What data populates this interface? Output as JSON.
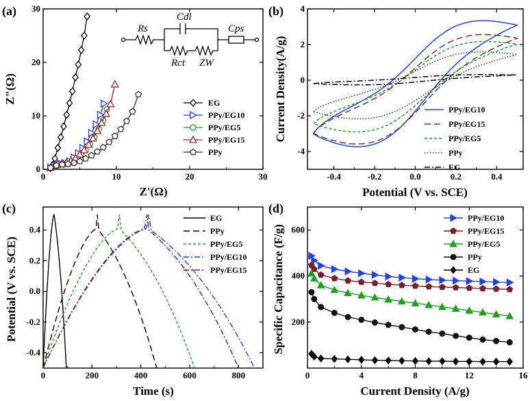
{
  "chart_data": [
    {
      "id": "a",
      "type": "scatter",
      "panel_label": "(a)",
      "xlabel": "Z'(Ω)",
      "ylabel": "Z\"(Ω)",
      "xlim": [
        0,
        30
      ],
      "ylim": [
        0,
        30
      ],
      "xticks": [
        0,
        10,
        20,
        30
      ],
      "yticks": [
        0,
        10,
        20,
        30
      ],
      "inset_circuit": {
        "rs": "Rs",
        "cdl": "Cdl",
        "rct": "Rct",
        "zw": "ZW",
        "cps": "Cps"
      },
      "series": [
        {
          "name": "EG",
          "color": "#000000",
          "marker": "diamond",
          "x": [
            1.0,
            1.3,
            1.6,
            2.0,
            2.4,
            2.8,
            3.2,
            3.6,
            4.0,
            4.4,
            4.8,
            5.2,
            5.6,
            6.0
          ],
          "y": [
            0.2,
            0.8,
            2.0,
            4.0,
            6.0,
            8.0,
            10.2,
            12.4,
            14.6,
            17.2,
            19.6,
            22.3,
            25.0,
            28.6
          ]
        },
        {
          "name": "PPy/EG10",
          "color": "#1f3fff",
          "marker": "tri-right",
          "x": [
            1.0,
            1.5,
            2.0,
            2.5,
            3.0,
            3.6,
            4.2,
            4.8,
            5.4,
            6.0,
            6.6,
            7.2,
            7.8,
            8.3
          ],
          "y": [
            0.3,
            0.7,
            0.9,
            1.0,
            1.1,
            1.5,
            2.2,
            3.0,
            4.0,
            5.2,
            6.8,
            8.4,
            10.2,
            12.3
          ]
        },
        {
          "name": "PPy/EG5",
          "color": "#1aa31a",
          "marker": "circle",
          "x": [
            1.0,
            1.6,
            2.2,
            2.8,
            3.4,
            4.0,
            4.6,
            5.2,
            5.8,
            6.4,
            7.0,
            7.6,
            8.2,
            8.7
          ],
          "y": [
            0.3,
            0.6,
            0.8,
            0.9,
            1.0,
            1.3,
            1.9,
            2.7,
            3.6,
            4.7,
            6.0,
            7.5,
            9.2,
            11.2
          ]
        },
        {
          "name": "PPy/EG15",
          "color": "#a0202a",
          "marker": "triangle",
          "x": [
            1.0,
            1.5,
            2.0,
            2.6,
            3.2,
            3.8,
            4.4,
            5.0,
            5.6,
            6.2,
            6.8,
            7.4,
            8.0,
            8.6,
            9.2,
            9.8
          ],
          "y": [
            0.3,
            0.7,
            1.0,
            1.2,
            1.3,
            1.6,
            2.1,
            2.8,
            3.6,
            4.6,
            5.8,
            7.2,
            8.7,
            10.4,
            12.2,
            15.9
          ]
        },
        {
          "name": "PPy",
          "color": "#333333",
          "marker": "pentagon",
          "x": [
            1.0,
            1.8,
            2.6,
            3.4,
            4.2,
            5.0,
            5.8,
            6.6,
            7.4,
            8.2,
            9.0,
            9.8,
            10.6,
            11.4,
            12.2,
            13.0
          ],
          "y": [
            0.3,
            0.7,
            0.9,
            1.0,
            1.2,
            1.5,
            2.0,
            2.6,
            3.3,
            4.1,
            5.1,
            6.2,
            7.5,
            9.0,
            10.8,
            14.0
          ]
        }
      ]
    },
    {
      "id": "b",
      "type": "line",
      "panel_label": "(b)",
      "xlabel": "Potential (V vs. SCE)",
      "ylabel": "Current Density(A/g)",
      "xlim": [
        -0.53,
        0.53
      ],
      "ylim": [
        -5,
        4
      ],
      "xticks": [
        -0.4,
        -0.2,
        0.0,
        0.2,
        0.4
      ],
      "yticks": [
        -4,
        -2,
        0,
        2,
        4
      ],
      "series": [
        {
          "name": "PPy/EG10",
          "color": "#1f3fff",
          "dash": "solid",
          "amp": 3.15,
          "hyst": 1.7,
          "offset": 0.05
        },
        {
          "name": "PPy/EG15",
          "color": "#7a3030",
          "dash": "long",
          "amp": 2.75,
          "hyst": 1.45,
          "offset": -0.3
        },
        {
          "name": "PPy/EG5",
          "color": "#1aa31a",
          "dash": "short",
          "amp": 2.3,
          "hyst": 1.15,
          "offset": -0.2
        },
        {
          "name": "PPy",
          "color": "#333333",
          "dash": "dot",
          "amp": 1.65,
          "hyst": 0.95,
          "offset": -0.15
        },
        {
          "name": "EG",
          "color": "#000000",
          "dash": "dashdot",
          "amp": 0.25,
          "hyst": 0.15,
          "offset": 0.05
        }
      ]
    },
    {
      "id": "c",
      "type": "line",
      "panel_label": "(c)",
      "xlabel": "Time (s)",
      "ylabel": "Potential (V vs. SCE)",
      "xlim": [
        0,
        900
      ],
      "ylim": [
        -0.5,
        0.55
      ],
      "xticks": [
        0,
        200,
        400,
        600,
        800
      ],
      "yticks": [
        -0.4,
        -0.2,
        0.0,
        0.2,
        0.4
      ],
      "series": [
        {
          "name": "EG",
          "color": "#000000",
          "dash": "solid",
          "t_peak": 45,
          "t_end": 95
        },
        {
          "name": "PPy",
          "color": "#000000",
          "dash": "long",
          "t_peak": 222,
          "t_end": 465
        },
        {
          "name": "PPy/EG5",
          "color": "#1aa31a",
          "dash": "short",
          "t_peak": 312,
          "t_end": 620
        },
        {
          "name": "PPy/EG10",
          "color": "#1f3fff",
          "dash": "dashdot",
          "t_peak": 432,
          "t_end": 865
        },
        {
          "name": "PPy/EG15",
          "color": "#7a1d2a",
          "dash": "dashdot",
          "t_peak": 425,
          "t_end": 800
        }
      ]
    },
    {
      "id": "d",
      "type": "line",
      "panel_label": "(d)",
      "xlabel": "Current Density (A/g)",
      "ylabel": "Specific Capacitance (F/g)",
      "xlim": [
        0,
        16
      ],
      "ylim": [
        0,
        700
      ],
      "xticks": [
        0,
        4,
        8,
        12,
        16
      ],
      "yticks": [
        200,
        400,
        600
      ],
      "x": [
        0.3,
        0.5,
        1,
        2,
        3,
        4,
        5,
        6,
        7,
        8,
        9,
        10,
        11,
        12,
        13,
        14,
        15
      ],
      "series": [
        {
          "name": "PPy/EG10",
          "color": "#1f3fff",
          "marker": "tri-right",
          "values": [
            488,
            468,
            445,
            430,
            420,
            412,
            405,
            398,
            393,
            388,
            385,
            382,
            380,
            378,
            376,
            374,
            372
          ]
        },
        {
          "name": "PPy/EG15",
          "color": "#7a1d2a",
          "marker": "pentagon",
          "values": [
            447,
            430,
            405,
            390,
            380,
            374,
            369,
            364,
            360,
            357,
            354,
            352,
            350,
            348,
            346,
            344,
            342
          ]
        },
        {
          "name": "PPy/EG5",
          "color": "#1aa31a",
          "marker": "triangle",
          "values": [
            412,
            390,
            360,
            340,
            326,
            316,
            307,
            298,
            290,
            282,
            274,
            266,
            258,
            250,
            242,
            234,
            226
          ]
        },
        {
          "name": "PPy",
          "color": "#111111",
          "marker": "circle",
          "values": [
            330,
            300,
            265,
            240,
            222,
            210,
            198,
            188,
            178,
            168,
            158,
            150,
            140,
            132,
            124,
            118,
            112
          ]
        },
        {
          "name": "EG",
          "color": "#000000",
          "marker": "diamond",
          "values": [
            62,
            50,
            42,
            40,
            38,
            36,
            34,
            33,
            32,
            31,
            30,
            30,
            29,
            29,
            28,
            28,
            28
          ]
        }
      ]
    }
  ]
}
